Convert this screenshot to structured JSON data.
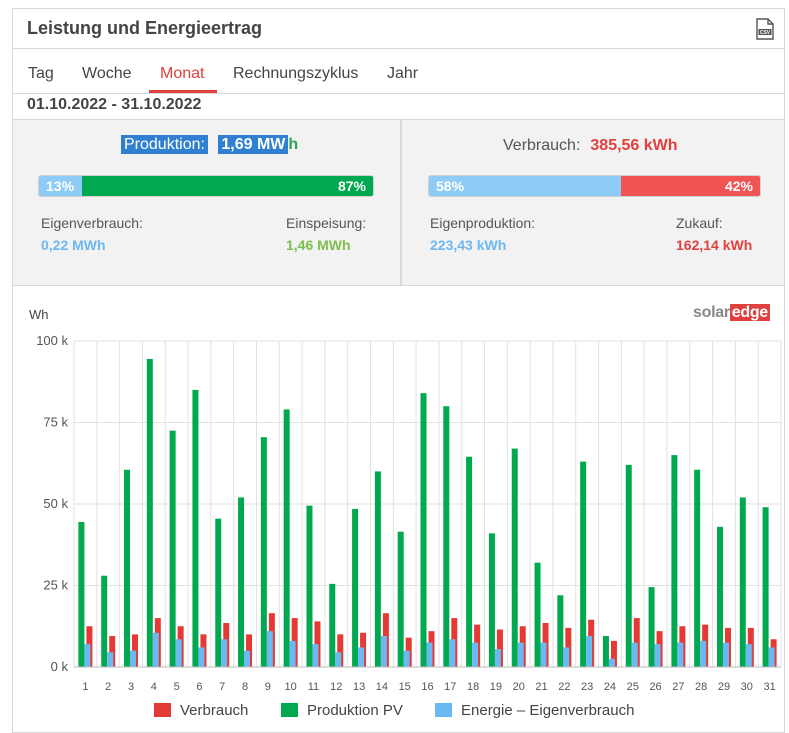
{
  "header": {
    "title": "Leistung und Energieertrag",
    "export_icon": "csv-file-icon"
  },
  "tabs": [
    {
      "label": "Tag",
      "active": false
    },
    {
      "label": "Woche",
      "active": false
    },
    {
      "label": "Monat",
      "active": true
    },
    {
      "label": "Rechnungszyklus",
      "active": false
    },
    {
      "label": "Jahr",
      "active": false
    }
  ],
  "date_range": "01.10.2022 - 31.10.2022",
  "production": {
    "label": "Produktion:",
    "value": "1,69 MW",
    "unit_suffix": "h",
    "bar_left_pct": 13,
    "bar_right_pct": 87,
    "bar_left_text": "13%",
    "bar_right_text": "87%",
    "self_consumption_label": "Eigenverbrauch:",
    "self_consumption_value": "0,22 MWh",
    "feed_in_label": "Einspeisung:",
    "feed_in_value": "1,46 MWh"
  },
  "consumption": {
    "label": "Verbrauch:",
    "value": "385,56 kWh",
    "bar_left_pct": 58,
    "bar_right_pct": 42,
    "bar_left_text": "58%",
    "bar_right_text": "42%",
    "self_production_label": "Eigenproduktion:",
    "self_production_value": "223,43 kWh",
    "purchase_label": "Zukauf:",
    "purchase_value": "162,14 kWh"
  },
  "logo": {
    "part1": "solar",
    "part2": "edge"
  },
  "colors": {
    "verbrauch": "#e53935",
    "produktion": "#00a94f",
    "eigenverbrauch": "#6cb8f2",
    "accent": "#e0403e",
    "selection": "#2f80d1"
  },
  "chart_data": {
    "type": "bar",
    "ylabel": "Wh",
    "ylim": [
      0,
      100000
    ],
    "yticks": [
      {
        "value": 0,
        "label": "0 k"
      },
      {
        "value": 25000,
        "label": "25 k"
      },
      {
        "value": 50000,
        "label": "50 k"
      },
      {
        "value": 75000,
        "label": "75 k"
      },
      {
        "value": 100000,
        "label": "100 k"
      }
    ],
    "grid": true,
    "legend_position": "bottom",
    "categories": [
      "1",
      "2",
      "3",
      "4",
      "5",
      "6",
      "7",
      "8",
      "9",
      "10",
      "11",
      "12",
      "13",
      "14",
      "15",
      "16",
      "17",
      "18",
      "19",
      "20",
      "21",
      "22",
      "23",
      "24",
      "25",
      "26",
      "27",
      "28",
      "29",
      "30",
      "31"
    ],
    "series": [
      {
        "name": "Verbrauch",
        "color": "#e53935",
        "values": [
          12500,
          9500,
          10000,
          15000,
          12500,
          10000,
          13500,
          10000,
          16500,
          15000,
          14000,
          10000,
          10500,
          16500,
          9000,
          11000,
          15000,
          13000,
          11500,
          12500,
          13500,
          12000,
          14500,
          8000,
          15000,
          11000,
          12500,
          13000,
          12000,
          12000,
          8500
        ]
      },
      {
        "name": "Produktion PV",
        "color": "#00a94f",
        "values": [
          44500,
          28000,
          60500,
          94500,
          72500,
          85000,
          45500,
          52000,
          70500,
          79000,
          49500,
          25500,
          48500,
          60000,
          41500,
          84000,
          80000,
          64500,
          41000,
          67000,
          32000,
          22000,
          63000,
          9500,
          62000,
          24500,
          65000,
          60500,
          43000,
          52000,
          49000
        ]
      },
      {
        "name": "Energie - Eigenverbrauch",
        "color": "#6cb8f2",
        "values": [
          7000,
          4500,
          5000,
          10500,
          8500,
          6000,
          8500,
          5000,
          11000,
          8000,
          7000,
          4500,
          6000,
          9500,
          5000,
          7500,
          8500,
          7500,
          5500,
          7500,
          7500,
          6000,
          9500,
          2500,
          7500,
          7000,
          7500,
          8000,
          7500,
          7000,
          6000
        ]
      }
    ]
  }
}
